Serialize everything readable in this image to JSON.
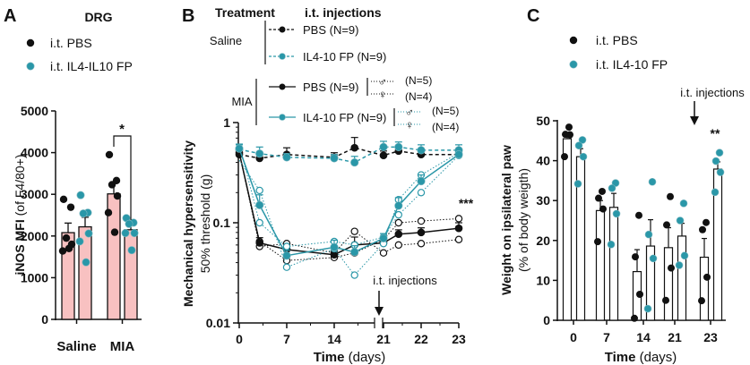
{
  "colors": {
    "pbs": "#111111",
    "il4": "#2a97a8",
    "bar_a": "#f8c1c1",
    "bar_c": "#ffffff"
  },
  "chart_data": [
    {
      "panel": "A",
      "type": "bar",
      "title": "DRG",
      "ylabel_bold": "iNOS MFI",
      "ylabel_rest": "(of F4/80+)",
      "ylim": [
        0,
        5000
      ],
      "yticks": [
        "0",
        "1000",
        "2000",
        "3000",
        "4000",
        "5000"
      ],
      "categories": [
        "Saline",
        "MIA"
      ],
      "legend": [
        "i.t. PBS",
        "i.t. IL4-IL10 FP"
      ],
      "series": [
        {
          "name": "i.t. PBS",
          "values": [
            2080,
            3010
          ],
          "sem": [
            230,
            250
          ],
          "points": [
            [
              2880,
              2690,
              1950,
              1800,
              1640,
              1700
            ],
            [
              3950,
              3330,
              3230,
              2960,
              2560,
              2090
            ]
          ]
        },
        {
          "name": "i.t. IL4-IL10 FP",
          "values": [
            2220,
            2150
          ],
          "sem": [
            230,
            150
          ],
          "points": [
            [
              2980,
              2560,
              2540,
              2060,
              1870,
              1370
            ],
            [
              2430,
              2320,
              2290,
              2070,
              2070,
              1660
            ]
          ]
        }
      ],
      "annotation": "*"
    },
    {
      "panel": "B",
      "type": "line",
      "xlabel_bold": "Time",
      "xlabel_rest": "(days)",
      "ylabel_bold": "Mechanical hypersensitivity",
      "ylabel_rest": "50% threshold (g)",
      "yscale": "log",
      "ylim": [
        0.01,
        1
      ],
      "yticks": [
        "0.01",
        "0.1",
        "1"
      ],
      "xticks": [
        "0",
        "7",
        "14",
        "21",
        "22",
        "23"
      ],
      "x": [
        0,
        3,
        7,
        14,
        17,
        21,
        21.4,
        22,
        23
      ],
      "legend_headers": {
        "treatment": "Treatment",
        "injections": "i.t. injections"
      },
      "groups": [
        "Saline",
        "MIA"
      ],
      "series": [
        {
          "name": "PBS (N=9)",
          "group": "Saline",
          "style": "dashed",
          "color": "pbs",
          "values": [
            0.48,
            0.44,
            0.48,
            0.45,
            0.56,
            0.47,
            0.52,
            0.48,
            0.48
          ],
          "sem": [
            0.05,
            0.04,
            0.08,
            0.05,
            0.15,
            0.05,
            0.06,
            0.05,
            0.05
          ]
        },
        {
          "name": "IL4-10 FP (N=9)",
          "group": "Saline",
          "style": "dashed",
          "color": "il4",
          "values": [
            0.54,
            0.49,
            0.45,
            0.44,
            0.4,
            0.57,
            0.57,
            0.53,
            0.53
          ],
          "sem": [
            0.06,
            0.08,
            0.04,
            0.04,
            0.06,
            0.08,
            0.07,
            0.07,
            0.07
          ]
        },
        {
          "name": "PBS (N=9)",
          "group": "MIA",
          "style": "solid",
          "color": "pbs",
          "values": [
            0.5,
            0.063,
            0.054,
            0.048,
            0.06,
            0.063,
            0.077,
            0.08,
            0.088
          ],
          "sem": [
            0.05,
            0.008,
            0.006,
            0.005,
            0.012,
            0.006,
            0.008,
            0.009,
            0.012
          ],
          "sexes": [
            {
              "symbol": "♂",
              "n": "(N=5)",
              "values": [
                0.5,
                0.058,
                0.062,
                0.05,
                0.082,
                0.05,
                0.06,
                0.062,
                0.068
              ]
            },
            {
              "symbol": "♀",
              "n": "(N=4)",
              "values": [
                0.5,
                0.065,
                0.042,
                0.045,
                0.05,
                0.068,
                0.1,
                0.104,
                0.11
              ]
            }
          ]
        },
        {
          "name": "IL4-10 FP (N=9)",
          "group": "MIA",
          "style": "solid",
          "color": "il4",
          "values": [
            0.55,
            0.15,
            0.047,
            0.057,
            0.051,
            0.07,
            0.148,
            0.26,
            0.48
          ],
          "sem": [
            0.06,
            0.04,
            0.006,
            0.01,
            0.008,
            0.008,
            0.03,
            0.04,
            0.05
          ],
          "sexes": [
            {
              "symbol": "♂",
              "n": "(N=5)",
              "values": [
                0.6,
                0.1,
                0.058,
                0.065,
                0.06,
                0.072,
                0.12,
                0.2,
                0.47
              ]
            },
            {
              "symbol": "♀",
              "n": "(N=4)",
              "values": [
                0.42,
                0.21,
                0.036,
                0.055,
                0.03,
                0.062,
                0.17,
                0.3,
                0.5
              ]
            }
          ]
        }
      ],
      "annotations": {
        "significance": "***",
        "injection": "i.t. injections"
      }
    },
    {
      "panel": "C",
      "type": "bar",
      "xlabel_bold": "Time",
      "xlabel_rest": "(days)",
      "ylabel_bold": "Weight on ipsilateral paw",
      "ylabel_rest": "(% of body weigth)",
      "ylim": [
        0,
        50
      ],
      "yticks": [
        "0",
        "10",
        "20",
        "30",
        "40",
        "50"
      ],
      "categories": [
        "0",
        "7",
        "14",
        "21",
        "23"
      ],
      "legend": [
        "i.t. PBS",
        "i.t. IL4-10 FP"
      ],
      "series": [
        {
          "name": "i.t. PBS",
          "values": [
            45.5,
            27.5,
            12.2,
            18.2,
            15.8
          ],
          "sem": [
            1.5,
            2.5,
            5.5,
            5.0,
            4.7
          ],
          "points": [
            [
              48.4,
              46.6,
              46.5,
              41.0
            ],
            [
              32.3,
              30.6,
              27.9,
              19.7
            ],
            [
              26.3,
              15.9,
              6.5,
              0.5
            ],
            [
              31.0,
              23.9,
              13.1,
              5.0
            ],
            [
              24.5,
              22.7,
              10.8,
              4.9
            ]
          ]
        },
        {
          "name": "i.t. IL4-10 FP",
          "values": [
            41.0,
            28.3,
            18.6,
            21.1,
            37.9
          ],
          "sem": [
            2.0,
            3.5,
            6.6,
            3.2,
            1.8
          ],
          "points": [
            [
              45.2,
              43.8,
              41.0,
              34.2
            ],
            [
              34.4,
              33.1,
              26.7,
              19.0
            ],
            [
              34.7,
              21.5,
              15.5,
              2.9
            ],
            [
              29.3,
              25.0,
              16.2,
              13.8
            ],
            [
              42.0,
              39.9,
              37.1,
              32.1
            ]
          ]
        }
      ],
      "annotations": {
        "significance": "**",
        "injection": "i.t. injections"
      }
    }
  ]
}
